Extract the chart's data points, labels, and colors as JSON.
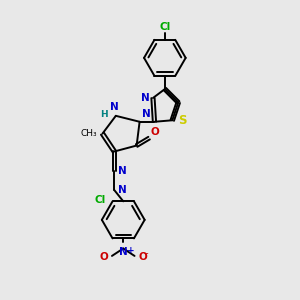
{
  "background_color": "#e8e8e8",
  "bond_color": "#000000",
  "n_color": "#0000cc",
  "o_color": "#cc0000",
  "s_color": "#cccc00",
  "cl_color": "#00aa00",
  "h_color": "#008080",
  "fig_size": [
    3.0,
    3.0
  ],
  "dpi": 100,
  "xlim": [
    0,
    10
  ],
  "ylim": [
    0,
    10
  ]
}
